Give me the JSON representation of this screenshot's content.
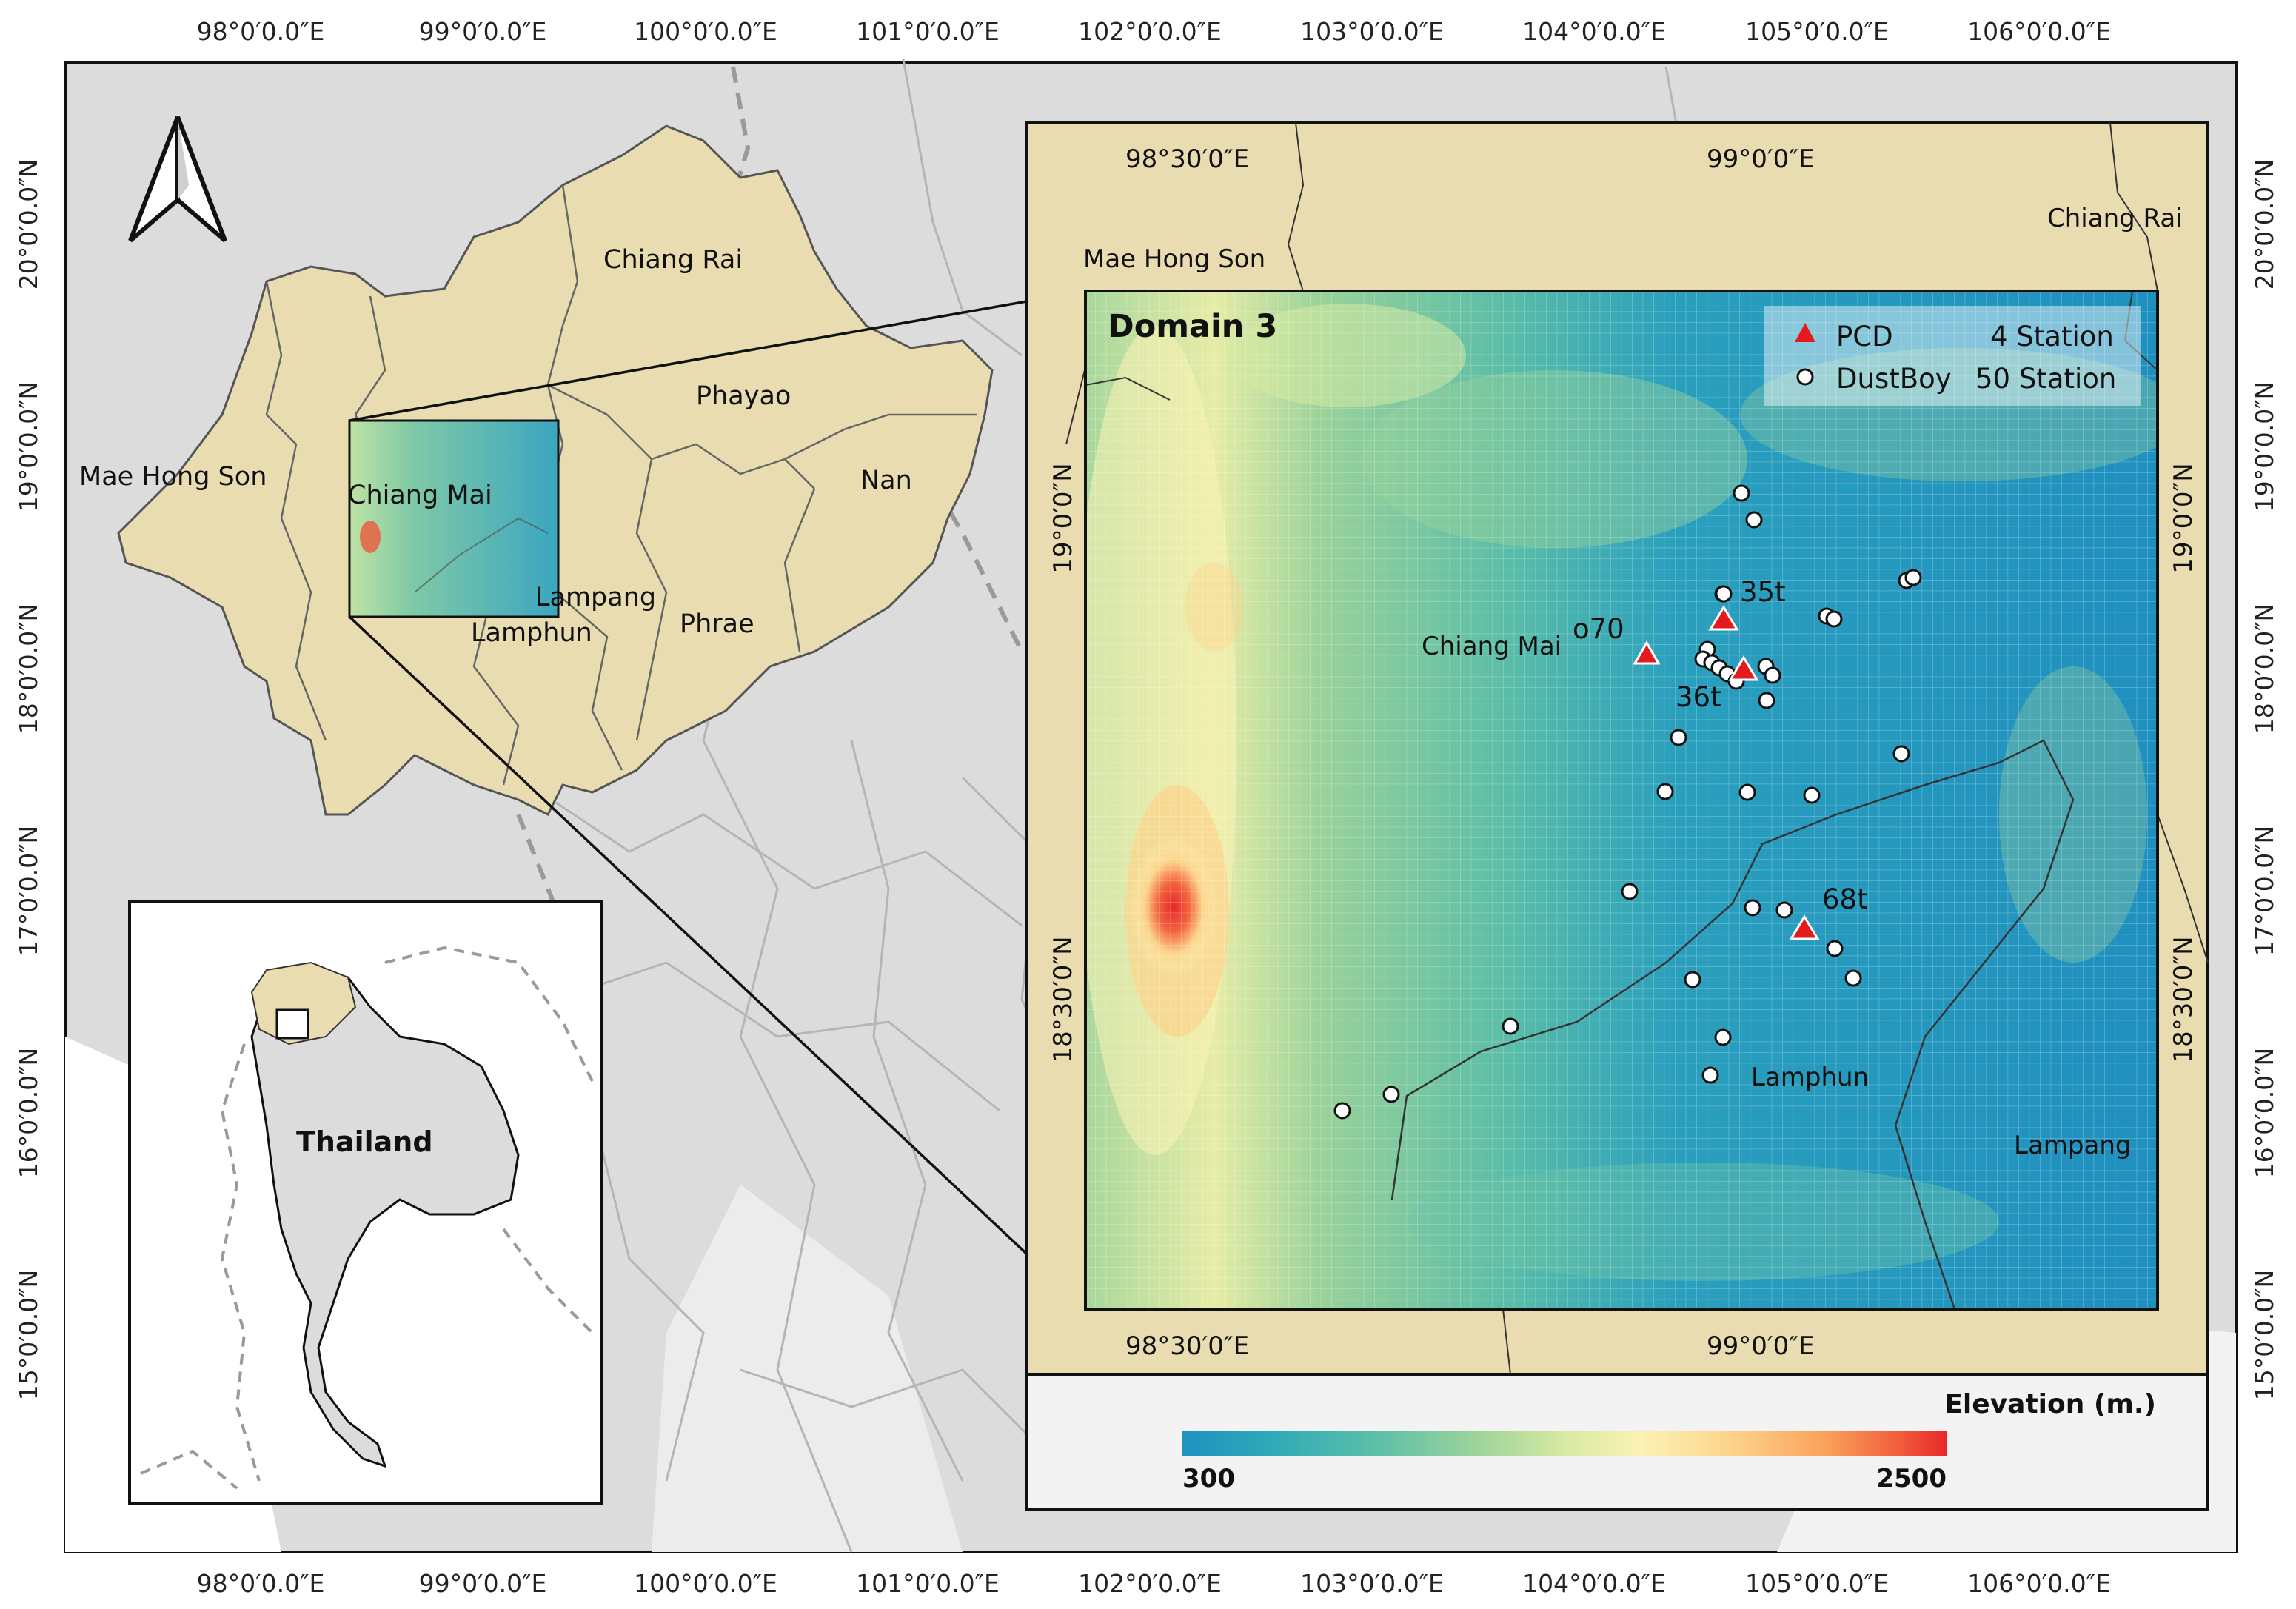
{
  "map": {
    "x_ticks": [
      "98°0′0.0″E",
      "99°0′0.0″E",
      "100°0′0.0″E",
      "101°0′0.0″E",
      "102°0′0.0″E",
      "103°0′0.0″E",
      "104°0′0.0″E",
      "105°0′0.0″E",
      "106°0′0.0″E"
    ],
    "y_ticks": [
      "20°0′0.0″N",
      "19°0′0.0″N",
      "18°0′0.0″N",
      "17°0′0.0″N",
      "16°0′0.0″N",
      "15°0′0.0″N"
    ],
    "provinces": {
      "mae_hong_son": "Mae Hong Son",
      "chiang_mai": "Chiang Mai",
      "chiang_rai": "Chiang Rai",
      "phayao": "Phayao",
      "nan": "Nan",
      "lampang": "Lampang",
      "lamphun": "Lamphun",
      "phrae": "Phrae"
    },
    "inset": {
      "country_label": "Thailand"
    },
    "domain": {
      "title": "Domain 3",
      "lon_ticks": [
        "98°30′0″E",
        "99°0′0″E"
      ],
      "lat_ticks": [
        "19°0′0″N",
        "18°30′0″N"
      ],
      "labels": {
        "mae_hong_son": "Mae Hong Son",
        "chiang_rai": "Chiang Rai",
        "chiang_mai": "Chiang Mai",
        "lamphun": "Lamphun",
        "lampang": "Lampang"
      },
      "legend": {
        "pcd_label": "PCD",
        "pcd_count": "4  Station",
        "dustboy_label": "DustBoy",
        "dustboy_count": "50 Station"
      },
      "station_labels": {
        "s35t": "35t",
        "s36t": "36t",
        "s68t": "68t",
        "o70": "o70"
      },
      "colorbar": {
        "title": "Elevation (m.)",
        "min_label": "300",
        "max_label": "2500",
        "colors": [
          "#1f92c0",
          "#2faab8",
          "#5bbfa8",
          "#9ad29a",
          "#d6e9a2",
          "#fbf2b5",
          "#fcd38a",
          "#f9a25c",
          "#f3633e",
          "#e62a2a"
        ]
      }
    }
  },
  "colors": {
    "land_highlight": "#e8dcb0",
    "land_other": "#dcdcdc",
    "sea": "#ffffff",
    "boundary": "#b8b8b8",
    "pcd_marker": "#e41a1c"
  }
}
